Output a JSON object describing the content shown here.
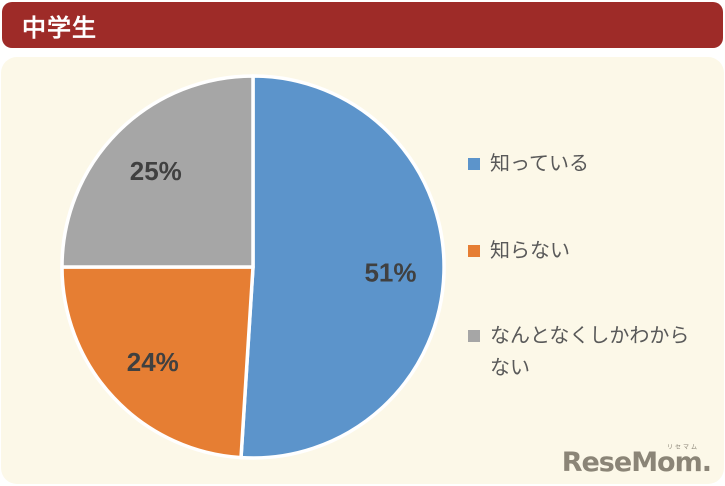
{
  "header": {
    "title": "中学生"
  },
  "colors": {
    "header_bg": "#9e2b28",
    "panel_bg": "#fcf8e8",
    "series_blue": "#5c94cb",
    "series_orange": "#e67e33",
    "series_gray": "#a6a6a6",
    "data_label_text": "#404040",
    "legend_text": "#595959",
    "logo_text": "#8b8577"
  },
  "chart_data": {
    "type": "pie",
    "title": "中学生",
    "categories": [
      "知っている",
      "知らない",
      "なんとなくしかわからない"
    ],
    "values": [
      51,
      24,
      25
    ],
    "unit": "%",
    "data_labels": [
      "51%",
      "24%",
      "25%"
    ],
    "colors": [
      "#5c94cb",
      "#e67e33",
      "#a6a6a6"
    ],
    "start_angle_deg": 0,
    "direction": "clockwise",
    "legend_position": "right",
    "slice_border_color": "#ffffff"
  },
  "legend": {
    "items": [
      {
        "label": "知っている",
        "color": "#5c94cb"
      },
      {
        "label": "知らない",
        "color": "#e67e33"
      },
      {
        "label": "なんとなくしかわからない",
        "color": "#a6a6a6"
      }
    ]
  },
  "logo": {
    "text": "ReseMom.",
    "ruby": "リセマム"
  }
}
